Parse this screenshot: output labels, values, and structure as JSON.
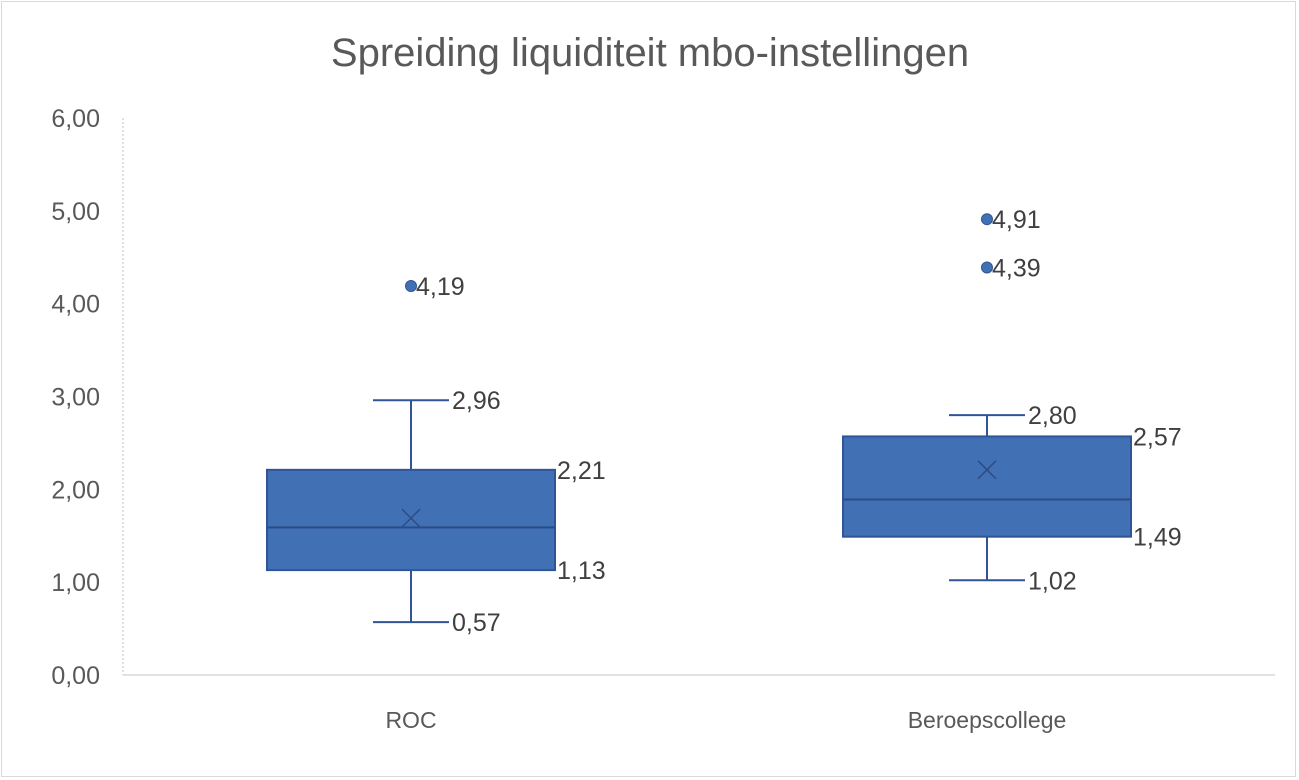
{
  "chart_data": {
    "type": "boxplot",
    "title": "Spreiding liquiditeit mbo-instellingen",
    "xlabel": "",
    "ylabel": "",
    "ylim": [
      0,
      6
    ],
    "y_ticks": [
      "0,00",
      "1,00",
      "2,00",
      "3,00",
      "4,00",
      "5,00",
      "6,00"
    ],
    "y_tick_values": [
      0,
      1,
      2,
      3,
      4,
      5,
      6
    ],
    "categories": [
      "ROC",
      "Beroepscollege"
    ],
    "series": [
      {
        "name": "ROC",
        "min": 0.57,
        "q1": 1.13,
        "median": 1.59,
        "mean": 1.69,
        "q3": 2.21,
        "max": 2.96,
        "outliers": [
          4.19
        ],
        "labels": {
          "min": "0,57",
          "q1": "1,13",
          "q3": "2,21",
          "max": "2,96",
          "outliers": [
            "4,19"
          ]
        }
      },
      {
        "name": "Beroepscollege",
        "min": 1.02,
        "q1": 1.49,
        "median": 1.89,
        "mean": 2.21,
        "q3": 2.57,
        "max": 2.8,
        "outliers": [
          4.39,
          4.91
        ],
        "labels": {
          "min": "1,02",
          "q1": "1,49",
          "q3": "2,57",
          "max": "2,80",
          "outliers": [
            "4,39",
            "4,91"
          ]
        }
      }
    ],
    "colors": {
      "box": "#4270b5",
      "border": "#2f5597",
      "text": "#595959",
      "axis": "#d9d9d9"
    },
    "grid": false,
    "legend": "none"
  }
}
